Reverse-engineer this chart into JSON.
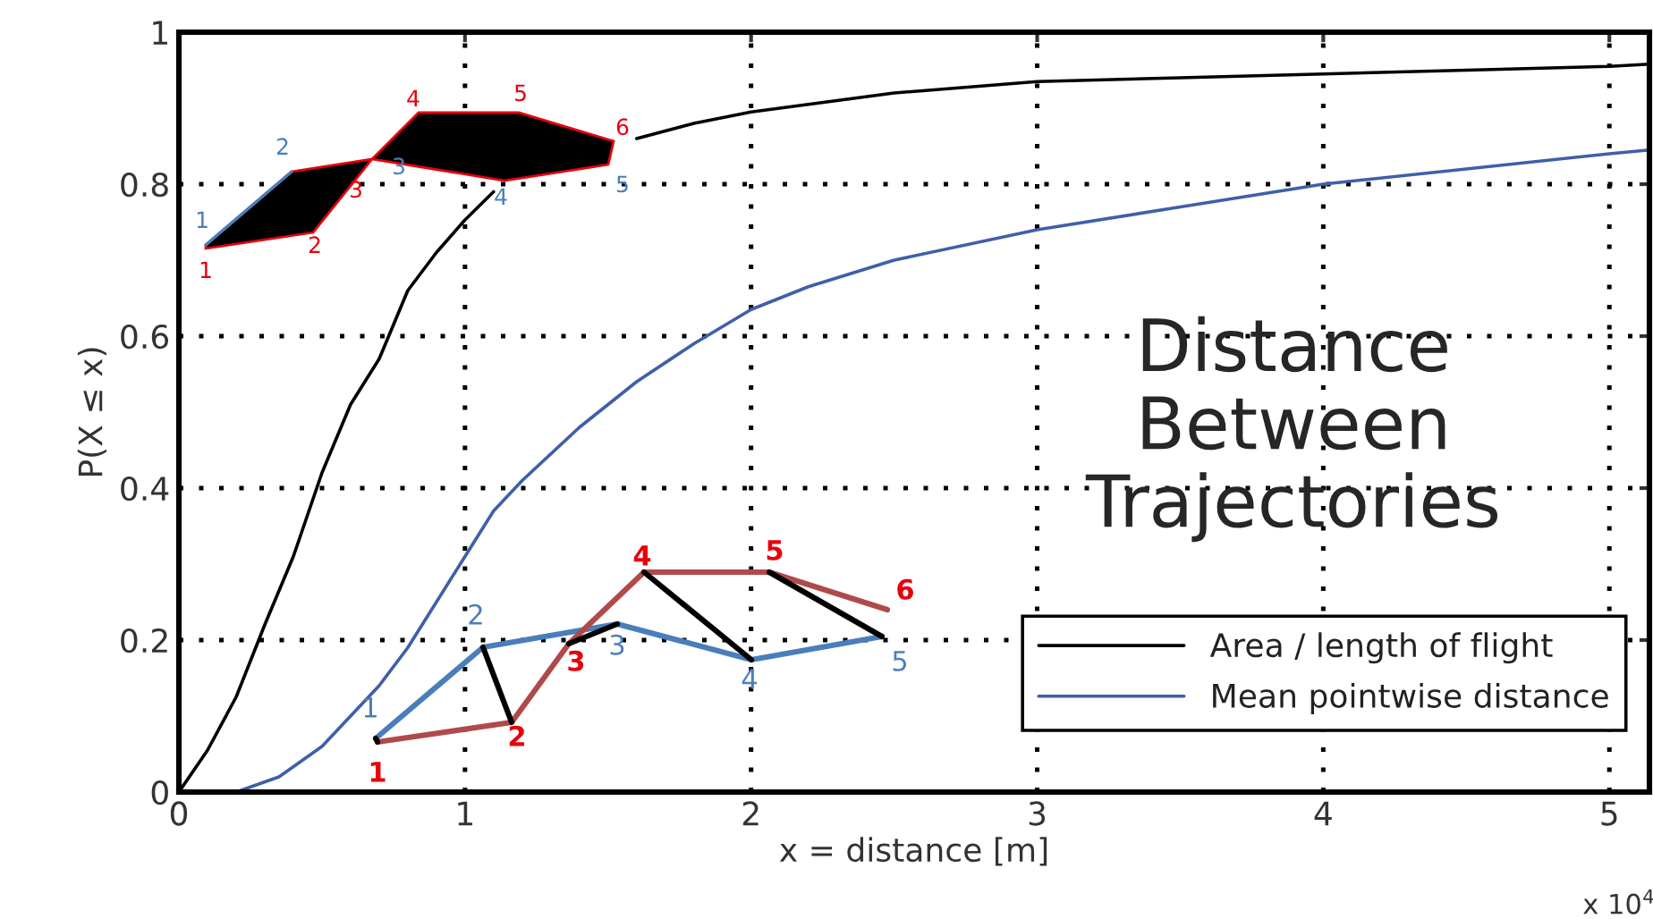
{
  "chart_data": {
    "type": "line",
    "title": "Distance Between Trajectories",
    "xlabel": "x = distance [m]",
    "ylabel": "P(X ≤ x)",
    "xlim": [
      0,
      5.14
    ],
    "xticks": [
      0,
      1,
      2,
      3,
      4,
      5
    ],
    "ylim": [
      0,
      1
    ],
    "yticks": [
      0,
      {
        "value": 0.2,
        "label": "0.2"
      },
      {
        "value": 0.4,
        "label": "0.4"
      },
      {
        "value": 0.6,
        "label": "0.6"
      },
      {
        "value": 0.8,
        "label": "0.8"
      },
      1
    ],
    "grid": true,
    "legend": "bottom right",
    "line_style": "solid",
    "marker": "none",
    "series": [
      {
        "name": "Area / length of flight",
        "color": "#000000",
        "x": [
          0,
          0.1,
          0.2,
          0.3,
          0.4,
          0.5,
          0.6,
          0.7,
          0.8,
          0.9,
          1.0,
          1.1,
          1.2,
          1.4,
          1.6,
          1.8,
          2.0,
          2.5,
          3.0,
          3.5,
          4.0,
          4.5,
          5.0,
          5.14
        ],
        "values": [
          0,
          0.055,
          0.125,
          0.22,
          0.31,
          0.42,
          0.51,
          0.57,
          0.66,
          0.71,
          0.753,
          0.79,
          null,
          null,
          0.86,
          0.88,
          0.895,
          0.92,
          0.935,
          0.94,
          0.945,
          0.95,
          0.955,
          0.958
        ]
      },
      {
        "name": "Mean pointwise distance",
        "color": "#3f5fa8",
        "x": [
          0,
          0.2,
          0.35,
          0.5,
          0.6,
          0.7,
          0.8,
          0.9,
          1.0,
          1.1,
          1.2,
          1.4,
          1.6,
          1.8,
          2.0,
          2.2,
          2.5,
          3.0,
          3.5,
          4.0,
          4.5,
          5.0,
          5.14
        ],
        "values": [
          0,
          0,
          0.02,
          0.06,
          0.1,
          0.14,
          0.19,
          0.25,
          0.31,
          0.37,
          0.41,
          0.48,
          0.54,
          0.59,
          0.635,
          0.665,
          0.7,
          0.74,
          0.77,
          0.8,
          0.82,
          0.84,
          0.845
        ]
      }
    ],
    "annotations": [
      "x 10$^{4}$",
      "1",
      "2",
      "3",
      "4",
      "5",
      "1",
      "2",
      "3",
      "4",
      "5",
      "6",
      "1",
      "2",
      "3",
      "4",
      "5",
      "1",
      "2",
      "3",
      "4",
      "5",
      "6"
    ]
  }
}
